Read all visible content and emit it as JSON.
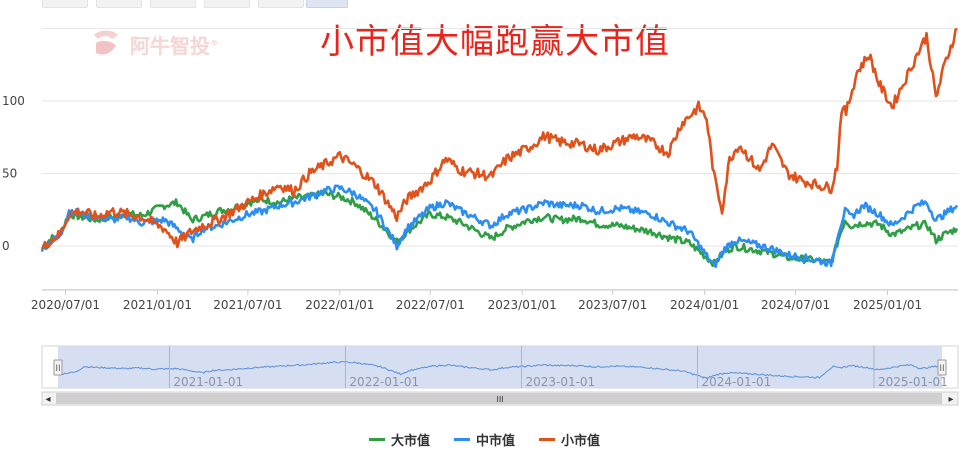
{
  "title": "小市值大幅跑赢大市值",
  "watermark": "阿牛智投",
  "colors": {
    "large": "#2f9e44",
    "mid": "#2b8ef0",
    "small": "#e0521c",
    "grid": "#e6e6e6",
    "axis_text": "#444444",
    "nav_fill": "#cfd8ef",
    "nav_line": "#5b8fd9"
  },
  "chart_data": {
    "type": "line",
    "title": "小市值大幅跑赢大市值",
    "x_ticks": [
      "2020/07/01",
      "2021/01/01",
      "2021/07/01",
      "2022/01/01",
      "2022/07/01",
      "2023/01/01",
      "2023/07/01",
      "2024/01/01",
      "2024/07/01",
      "2025/01/01"
    ],
    "y_ticks": [
      "0",
      "50",
      "100"
    ],
    "ylim": [
      -30,
      150
    ],
    "grid": true,
    "legend_position": "bottom",
    "series": [
      {
        "name": "大市值",
        "color": "#2f9e44",
        "points": [
          [
            "2020-05-15",
            -2
          ],
          [
            "2020-06-01",
            5
          ],
          [
            "2020-06-20",
            8
          ],
          [
            "2020-07-08",
            22
          ],
          [
            "2020-08-01",
            20
          ],
          [
            "2020-09-01",
            18
          ],
          [
            "2020-10-01",
            20
          ],
          [
            "2020-11-01",
            22
          ],
          [
            "2020-12-01",
            21
          ],
          [
            "2021-01-15",
            28
          ],
          [
            "2021-02-10",
            30
          ],
          [
            "2021-03-10",
            18
          ],
          [
            "2021-04-01",
            20
          ],
          [
            "2021-05-01",
            24
          ],
          [
            "2021-06-01",
            26
          ],
          [
            "2021-07-01",
            30
          ],
          [
            "2021-08-01",
            32
          ],
          [
            "2021-09-01",
            30
          ],
          [
            "2021-10-01",
            33
          ],
          [
            "2021-11-01",
            34
          ],
          [
            "2021-12-01",
            36
          ],
          [
            "2022-01-01",
            34
          ],
          [
            "2022-02-01",
            30
          ],
          [
            "2022-03-15",
            18
          ],
          [
            "2022-04-25",
            3
          ],
          [
            "2022-05-15",
            10
          ],
          [
            "2022-06-30",
            22
          ],
          [
            "2022-08-01",
            20
          ],
          [
            "2022-09-01",
            16
          ],
          [
            "2022-10-31",
            5
          ],
          [
            "2022-12-01",
            12
          ],
          [
            "2023-01-15",
            18
          ],
          [
            "2023-02-15",
            20
          ],
          [
            "2023-03-15",
            18
          ],
          [
            "2023-05-01",
            19
          ],
          [
            "2023-06-01",
            15
          ],
          [
            "2023-07-15",
            14
          ],
          [
            "2023-08-15",
            12
          ],
          [
            "2023-09-15",
            10
          ],
          [
            "2023-10-20",
            6
          ],
          [
            "2023-12-01",
            2
          ],
          [
            "2024-01-20",
            -12
          ],
          [
            "2024-02-10",
            -4
          ],
          [
            "2024-03-01",
            0
          ],
          [
            "2024-04-01",
            -2
          ],
          [
            "2024-05-15",
            -5
          ],
          [
            "2024-06-15",
            -8
          ],
          [
            "2024-07-15",
            -9
          ],
          [
            "2024-08-15",
            -10
          ],
          [
            "2024-09-10",
            -12
          ],
          [
            "2024-09-25",
            5
          ],
          [
            "2024-10-08",
            18
          ],
          [
            "2024-10-20",
            14
          ],
          [
            "2024-11-15",
            16
          ],
          [
            "2024-12-15",
            15
          ],
          [
            "2025-01-10",
            8
          ],
          [
            "2025-02-01",
            10
          ],
          [
            "2025-03-01",
            14
          ],
          [
            "2025-03-20",
            15
          ],
          [
            "2025-04-08",
            4
          ],
          [
            "2025-04-25",
            8
          ],
          [
            "2025-05-20",
            12
          ]
        ]
      },
      {
        "name": "中市值",
        "color": "#2b8ef0",
        "points": [
          [
            "2020-05-15",
            -2
          ],
          [
            "2020-06-01",
            3
          ],
          [
            "2020-06-20",
            6
          ],
          [
            "2020-07-08",
            25
          ],
          [
            "2020-08-01",
            22
          ],
          [
            "2020-09-01",
            20
          ],
          [
            "2020-10-01",
            18
          ],
          [
            "2020-11-01",
            20
          ],
          [
            "2020-12-01",
            16
          ],
          [
            "2021-01-15",
            18
          ],
          [
            "2021-02-10",
            12
          ],
          [
            "2021-03-10",
            4
          ],
          [
            "2021-04-01",
            12
          ],
          [
            "2021-05-01",
            14
          ],
          [
            "2021-06-01",
            18
          ],
          [
            "2021-07-01",
            22
          ],
          [
            "2021-08-01",
            24
          ],
          [
            "2021-09-01",
            28
          ],
          [
            "2021-10-01",
            30
          ],
          [
            "2021-11-01",
            34
          ],
          [
            "2021-12-01",
            38
          ],
          [
            "2022-01-01",
            40
          ],
          [
            "2022-02-01",
            36
          ],
          [
            "2022-03-15",
            24
          ],
          [
            "2022-04-25",
            0
          ],
          [
            "2022-05-15",
            12
          ],
          [
            "2022-06-30",
            26
          ],
          [
            "2022-08-01",
            30
          ],
          [
            "2022-09-01",
            24
          ],
          [
            "2022-10-31",
            14
          ],
          [
            "2022-12-01",
            22
          ],
          [
            "2023-01-15",
            26
          ],
          [
            "2023-02-15",
            30
          ],
          [
            "2023-03-15",
            28
          ],
          [
            "2023-05-01",
            28
          ],
          [
            "2023-06-01",
            24
          ],
          [
            "2023-07-15",
            26
          ],
          [
            "2023-08-15",
            24
          ],
          [
            "2023-09-15",
            22
          ],
          [
            "2023-10-20",
            16
          ],
          [
            "2023-12-01",
            10
          ],
          [
            "2024-01-20",
            -14
          ],
          [
            "2024-02-10",
            -2
          ],
          [
            "2024-03-01",
            4
          ],
          [
            "2024-04-01",
            2
          ],
          [
            "2024-05-15",
            -2
          ],
          [
            "2024-06-15",
            -6
          ],
          [
            "2024-07-15",
            -8
          ],
          [
            "2024-08-15",
            -10
          ],
          [
            "2024-09-10",
            -12
          ],
          [
            "2024-09-25",
            10
          ],
          [
            "2024-10-08",
            24
          ],
          [
            "2024-10-20",
            20
          ],
          [
            "2024-11-15",
            28
          ],
          [
            "2024-12-15",
            22
          ],
          [
            "2025-01-10",
            14
          ],
          [
            "2025-02-01",
            20
          ],
          [
            "2025-03-01",
            28
          ],
          [
            "2025-03-20",
            30
          ],
          [
            "2025-04-08",
            18
          ],
          [
            "2025-04-25",
            22
          ],
          [
            "2025-05-20",
            28
          ]
        ]
      },
      {
        "name": "小市值",
        "color": "#e0521c",
        "points": [
          [
            "2020-05-15",
            -2
          ],
          [
            "2020-06-01",
            4
          ],
          [
            "2020-06-20",
            8
          ],
          [
            "2020-07-08",
            22
          ],
          [
            "2020-08-01",
            24
          ],
          [
            "2020-09-01",
            20
          ],
          [
            "2020-10-01",
            24
          ],
          [
            "2020-11-01",
            22
          ],
          [
            "2020-12-01",
            20
          ],
          [
            "2021-01-15",
            12
          ],
          [
            "2021-02-10",
            2
          ],
          [
            "2021-03-10",
            10
          ],
          [
            "2021-04-01",
            14
          ],
          [
            "2021-05-01",
            18
          ],
          [
            "2021-06-01",
            24
          ],
          [
            "2021-07-01",
            30
          ],
          [
            "2021-08-01",
            36
          ],
          [
            "2021-09-01",
            42
          ],
          [
            "2021-10-01",
            38
          ],
          [
            "2021-11-01",
            50
          ],
          [
            "2021-12-01",
            56
          ],
          [
            "2022-01-01",
            62
          ],
          [
            "2022-02-01",
            55
          ],
          [
            "2022-03-15",
            42
          ],
          [
            "2022-04-25",
            20
          ],
          [
            "2022-05-15",
            32
          ],
          [
            "2022-06-30",
            45
          ],
          [
            "2022-08-01",
            60
          ],
          [
            "2022-09-01",
            52
          ],
          [
            "2022-10-31",
            48
          ],
          [
            "2022-12-01",
            60
          ],
          [
            "2023-01-15",
            68
          ],
          [
            "2023-02-15",
            76
          ],
          [
            "2023-03-15",
            72
          ],
          [
            "2023-05-01",
            70
          ],
          [
            "2023-06-01",
            66
          ],
          [
            "2023-07-15",
            72
          ],
          [
            "2023-08-15",
            76
          ],
          [
            "2023-09-15",
            72
          ],
          [
            "2023-10-20",
            64
          ],
          [
            "2023-11-15",
            84
          ],
          [
            "2023-12-20",
            96
          ],
          [
            "2024-01-05",
            88
          ],
          [
            "2024-01-20",
            48
          ],
          [
            "2024-02-05",
            25
          ],
          [
            "2024-02-20",
            60
          ],
          [
            "2024-03-10",
            70
          ],
          [
            "2024-04-01",
            60
          ],
          [
            "2024-04-20",
            52
          ],
          [
            "2024-05-15",
            70
          ],
          [
            "2024-06-15",
            50
          ],
          [
            "2024-07-15",
            45
          ],
          [
            "2024-08-15",
            42
          ],
          [
            "2024-09-10",
            40
          ],
          [
            "2024-09-22",
            55
          ],
          [
            "2024-10-01",
            95
          ],
          [
            "2024-10-10",
            92
          ],
          [
            "2024-11-01",
            120
          ],
          [
            "2024-11-25",
            132
          ],
          [
            "2024-12-15",
            112
          ],
          [
            "2025-01-10",
            96
          ],
          [
            "2025-02-10",
            118
          ],
          [
            "2025-03-01",
            132
          ],
          [
            "2025-03-20",
            145
          ],
          [
            "2025-04-08",
            102
          ],
          [
            "2025-04-25",
            125
          ],
          [
            "2025-05-20",
            150
          ]
        ]
      }
    ]
  },
  "navigator": {
    "ticks": [
      "2021-01-01",
      "2022-01-01",
      "2023-01-01",
      "2024-01-01",
      "2025-01-01"
    ],
    "handle_glyph": "II",
    "scroll_left": "◂",
    "scroll_right": "▸",
    "scroll_grip": "III"
  },
  "legend": {
    "large_label": "大市值",
    "mid_label": "中市值",
    "small_label": "小市值"
  }
}
